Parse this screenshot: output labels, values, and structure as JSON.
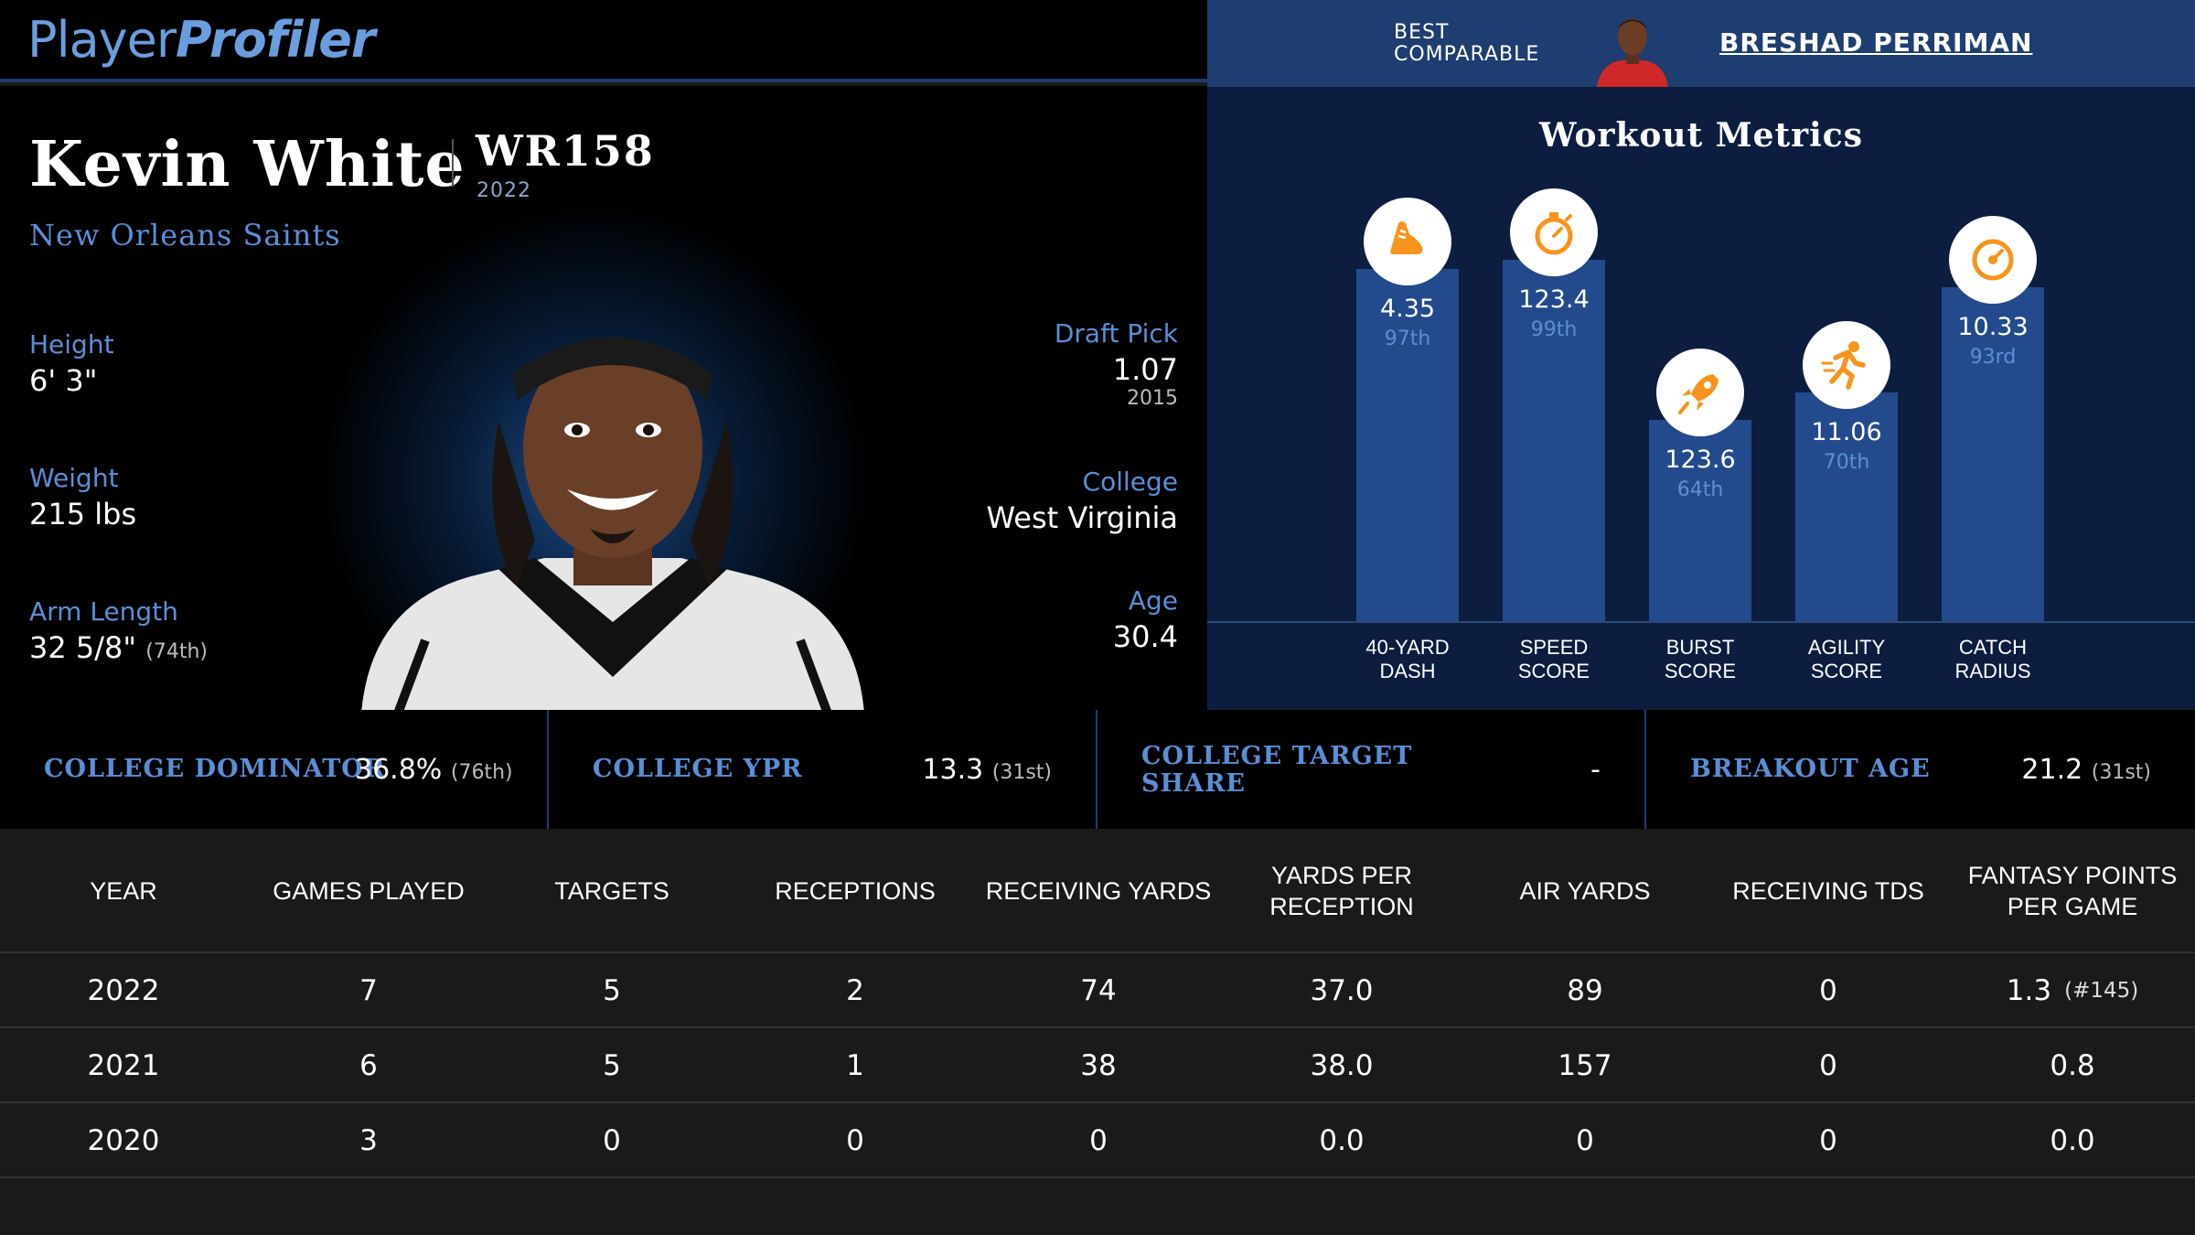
{
  "logo": {
    "part1": "Player",
    "part2": "Profiler"
  },
  "comparable": {
    "label_line1": "BEST",
    "label_line2": "COMPARABLE",
    "name": "BRESHAD PERRIMAN"
  },
  "player": {
    "name": "Kevin White",
    "rank": "WR158",
    "rank_year": "2022",
    "team": "New Orleans Saints",
    "height_label": "Height",
    "height": "6' 3\"",
    "weight_label": "Weight",
    "weight": "215 lbs",
    "arm_label": "Arm Length",
    "arm": "32 5/8\"",
    "arm_pct": "(74th)",
    "draft_label": "Draft Pick",
    "draft": "1.07",
    "draft_year": "2015",
    "college_label": "College",
    "college": "West Virginia",
    "age_label": "Age",
    "age": "30.4"
  },
  "workout": {
    "title": "Workout Metrics",
    "metrics": [
      {
        "icon": "shoe-icon",
        "value": "4.35",
        "pct": "97th",
        "percentile": 97,
        "label1": "40-YARD",
        "label2": "DASH"
      },
      {
        "icon": "stopwatch-icon",
        "value": "123.4",
        "pct": "99th",
        "percentile": 99,
        "label1": "SPEED",
        "label2": "SCORE"
      },
      {
        "icon": "rocket-icon",
        "value": "123.6",
        "pct": "64th",
        "percentile": 64,
        "label1": "BURST",
        "label2": "SCORE"
      },
      {
        "icon": "runner-icon",
        "value": "11.06",
        "pct": "70th",
        "percentile": 70,
        "label1": "AGILITY",
        "label2": "SCORE"
      },
      {
        "icon": "target-icon",
        "value": "10.33",
        "pct": "93rd",
        "percentile": 93,
        "label1": "CATCH",
        "label2": "RADIUS"
      }
    ],
    "accent": "#f7941d"
  },
  "college_stats": [
    {
      "label": "COLLEGE DOMINATOR",
      "value": "36.8%",
      "pct": "(76th)"
    },
    {
      "label": "COLLEGE YPR",
      "value": "13.3",
      "pct": "(31st)"
    },
    {
      "label_line1": "COLLEGE TARGET",
      "label_line2": "SHARE",
      "value": "-",
      "pct": ""
    },
    {
      "label": "BREAKOUT AGE",
      "value": "21.2",
      "pct": "(31st)"
    }
  ],
  "table": {
    "headers": [
      "YEAR",
      "GAMES PLAYED",
      "TARGETS",
      "RECEPTIONS",
      "RECEIVING YARDS",
      "YARDS PER RECEPTION",
      "AIR YARDS",
      "RECEIVING TDS",
      "FANTASY POINTS PER GAME"
    ],
    "rows": [
      [
        "2022",
        "7",
        "5",
        "2",
        "74",
        "37.0",
        "89",
        "0",
        "1.3",
        "(#145)"
      ],
      [
        "2021",
        "6",
        "5",
        "1",
        "38",
        "38.0",
        "157",
        "0",
        "0.8",
        ""
      ],
      [
        "2020",
        "3",
        "0",
        "0",
        "0",
        "0.0",
        "0",
        "0",
        "0.0",
        ""
      ]
    ]
  }
}
